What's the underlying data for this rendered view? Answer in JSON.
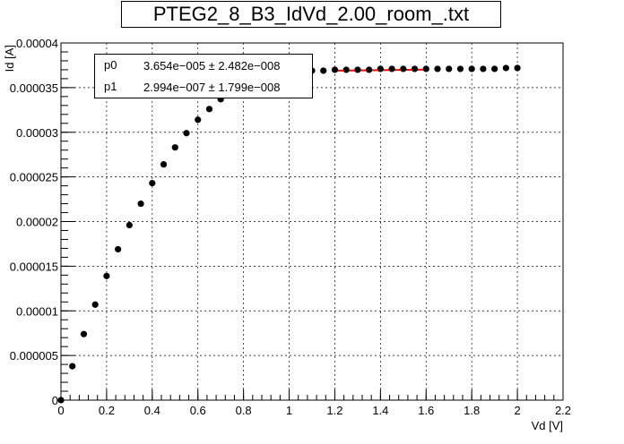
{
  "chart_data": {
    "type": "scatter",
    "title": "PTEG2_8_B3_IdVd_2.00_room_.txt",
    "xlabel": "Vd [V]",
    "ylabel": "Id [A]",
    "xlim": [
      0,
      2.2
    ],
    "ylim": [
      0,
      4e-05
    ],
    "grid": true,
    "x_ticks": [
      "0",
      "0.2",
      "0.4",
      "0.6",
      "0.8",
      "1",
      "1.2",
      "1.4",
      "1.6",
      "1.8",
      "2",
      "2.2"
    ],
    "y_ticks": [
      "0",
      "0.000005",
      "0.00001",
      "0.000015",
      "0.00002",
      "0.000025",
      "0.00003",
      "0.000035",
      "0.00004"
    ],
    "series": [
      {
        "x": [
          0.0,
          0.05,
          0.1,
          0.15,
          0.2,
          0.25,
          0.3,
          0.35,
          0.4,
          0.45,
          0.5,
          0.55,
          0.6,
          0.65,
          0.7,
          0.75,
          0.8,
          0.85,
          0.9,
          0.95,
          1.0,
          1.05,
          1.1,
          1.15,
          1.2,
          1.25,
          1.3,
          1.35,
          1.4,
          1.45,
          1.5,
          1.55,
          1.6,
          1.65,
          1.7,
          1.75,
          1.8,
          1.85,
          1.9,
          1.95,
          2.0
        ],
        "y": [
          0.0,
          3.8e-06,
          7.4e-06,
          1.07e-05,
          1.39e-05,
          1.69e-05,
          1.96e-05,
          2.2e-05,
          2.43e-05,
          2.64e-05,
          2.83e-05,
          2.99e-05,
          3.14e-05,
          3.26e-05,
          3.37e-05,
          3.46e-05,
          3.53e-05,
          3.59e-05,
          3.63e-05,
          3.66e-05,
          3.68e-05,
          3.69e-05,
          3.69e-05,
          3.69e-05,
          3.7e-05,
          3.7e-05,
          3.7e-05,
          3.7e-05,
          3.71e-05,
          3.71e-05,
          3.71e-05,
          3.71e-05,
          3.71e-05,
          3.71e-05,
          3.71e-05,
          3.71e-05,
          3.71e-05,
          3.71e-05,
          3.71e-05,
          3.72e-05,
          3.72e-05
        ]
      }
    ],
    "fit": {
      "x_range": [
        1.2,
        1.6
      ],
      "p0": 3.654e-05,
      "p1": 2.994e-07,
      "color": "#ff0000"
    },
    "stats": [
      {
        "name": "p0",
        "value": "3.654e−005 ± 2.482e−008"
      },
      {
        "name": "p1",
        "value": "2.994e−007 ± 1.799e−008"
      }
    ]
  }
}
